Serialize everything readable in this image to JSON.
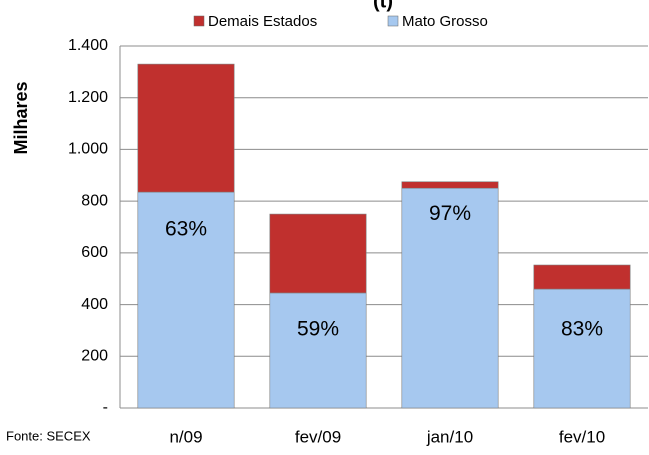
{
  "chart_data": {
    "type": "stacked_bar",
    "title": "(t)",
    "y_label": "Milhares",
    "source": "Fonte: SECEX",
    "categories": [
      "n/09",
      "fev/09",
      "jan/10",
      "fev/10"
    ],
    "series": [
      {
        "name": "Mato Grosso",
        "color": "#a6c8ef",
        "values": [
          835,
          445,
          850,
          460
        ]
      },
      {
        "name": "Demais Estados",
        "color": "#c0302e",
        "values": [
          495,
          305,
          25,
          93
        ]
      }
    ],
    "annotations": [
      "63%",
      "59%",
      "97%",
      "83%"
    ],
    "ylim": [
      0,
      1400
    ],
    "yticks": [
      {
        "value": 0,
        "label": "-"
      },
      200,
      400,
      600,
      800,
      {
        "value": 1000,
        "label": "1.000"
      },
      {
        "value": 1200,
        "label": "1.200"
      },
      {
        "value": 1400,
        "label": "1.400"
      }
    ],
    "grid": true
  }
}
